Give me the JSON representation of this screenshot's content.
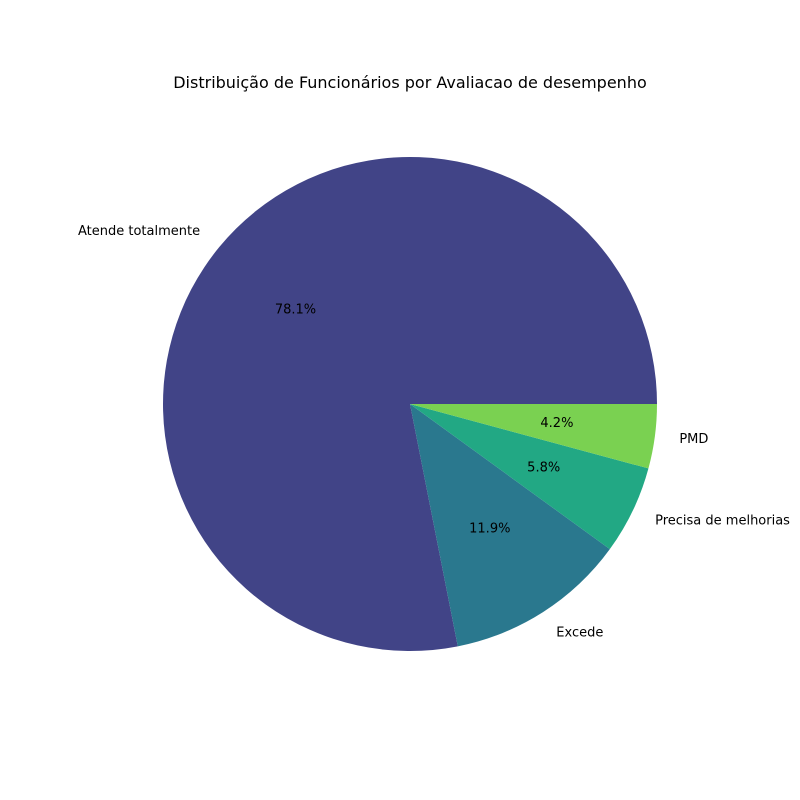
{
  "chart_data": {
    "type": "pie",
    "title": "Distribuição de Funcionários por  Avaliacao de desempenho",
    "categories": [
      "Atende totalmente",
      "Excede",
      "Precisa de melhorias",
      "PMD"
    ],
    "values": [
      78.1,
      11.9,
      5.8,
      4.2
    ],
    "percent_labels": [
      "78.1%",
      "11.9%",
      "5.8%",
      "4.2%"
    ],
    "colors": [
      "#414487",
      "#2a788e",
      "#22a884",
      "#7ad151"
    ],
    "start_angle": "0 degrees (3 o'clock)",
    "direction": "counterclockwise",
    "legend": "none"
  }
}
